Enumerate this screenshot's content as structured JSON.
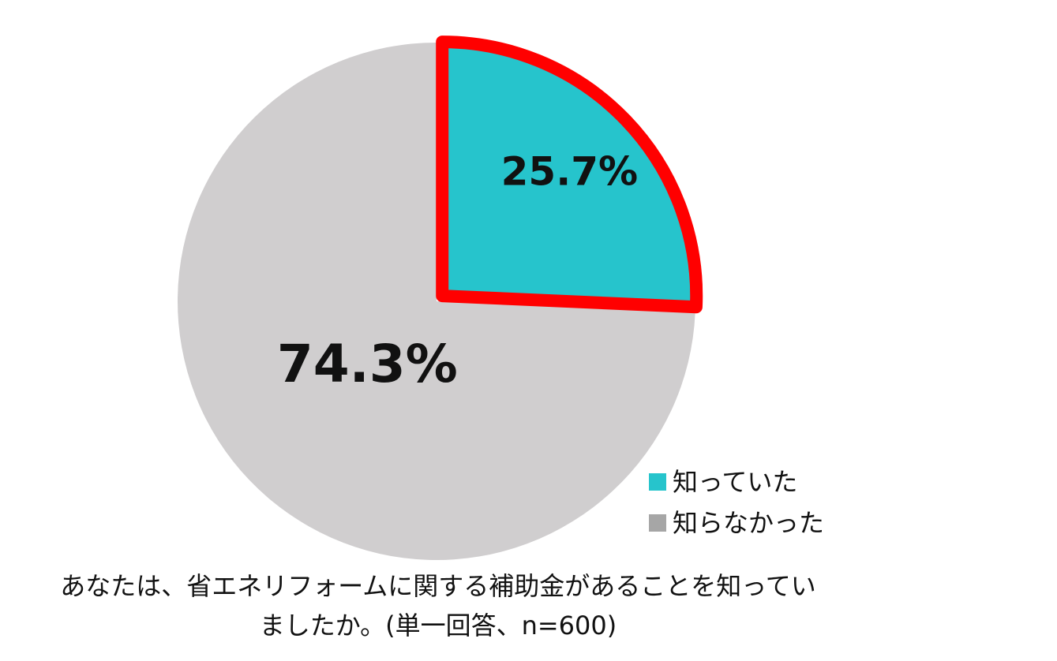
{
  "chart_data": {
    "type": "pie",
    "categories": [
      "知っていた",
      "知らなかった"
    ],
    "values": [
      25.7,
      74.3
    ],
    "value_labels": [
      "25.7%",
      "74.3%"
    ],
    "colors": [
      "#26c4cc",
      "#d0cecf"
    ],
    "legend_colors": [
      "#26c4cc",
      "#a6a6a6"
    ],
    "highlight": 0,
    "highlight_color": "#ff0000",
    "legend": "lower right",
    "caption": [
      "あなたは、省エネリフォームに関する補助金があることを知ってい",
      "ましたか。(単一回答、n=600)"
    ]
  }
}
